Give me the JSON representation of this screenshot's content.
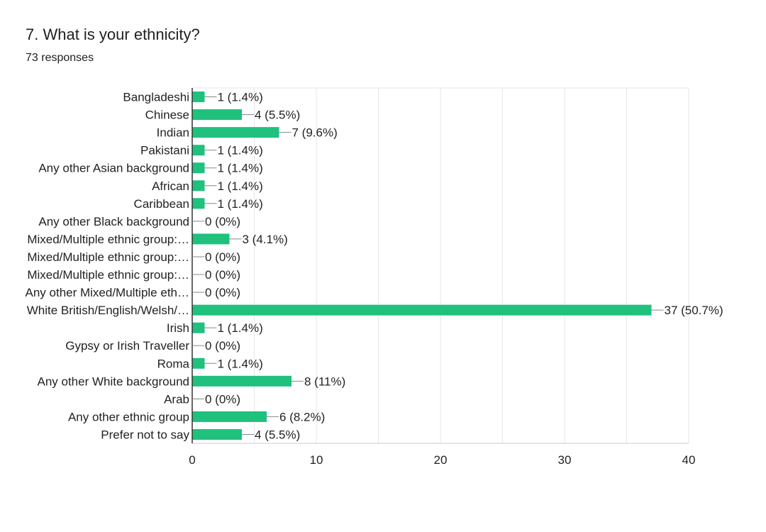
{
  "header": {
    "title": "7. What is your ethnicity?",
    "subtitle": "73 responses"
  },
  "chart_data": {
    "type": "bar",
    "orientation": "horizontal",
    "categories": [
      "Bangladeshi",
      "Chinese",
      "Indian",
      "Pakistani",
      "Any other Asian background",
      "African",
      "Caribbean",
      "Any other Black background",
      "Mixed/Multiple ethnic group:…",
      "Mixed/Multiple ethnic group:…",
      "Mixed/Multiple ethnic group:…",
      "Any other Mixed/Multiple eth…",
      "White British/English/Welsh/…",
      "Irish",
      "Gypsy or Irish Traveller",
      "Roma",
      "Any other White background",
      "Arab",
      "Any other ethnic group",
      "Prefer not to say"
    ],
    "values": [
      1,
      4,
      7,
      1,
      1,
      1,
      1,
      0,
      3,
      0,
      0,
      0,
      37,
      1,
      0,
      1,
      8,
      0,
      6,
      4
    ],
    "data_labels": [
      "1 (1.4%)",
      "4 (5.5%)",
      "7 (9.6%)",
      "1 (1.4%)",
      "1 (1.4%)",
      "1 (1.4%)",
      "1 (1.4%)",
      "0 (0%)",
      "3 (4.1%)",
      "0 (0%)",
      "0 (0%)",
      "0 (0%)",
      "37 (50.7%)",
      "1 (1.4%)",
      "0 (0%)",
      "1 (1.4%)",
      "8 (11%)",
      "0 (0%)",
      "6 (8.2%)",
      "4 (5.5%)"
    ],
    "xlim": [
      0,
      40
    ],
    "xticks": [
      0,
      10,
      20,
      30,
      40
    ],
    "grid": true,
    "bar_color": "#1fc17d"
  }
}
